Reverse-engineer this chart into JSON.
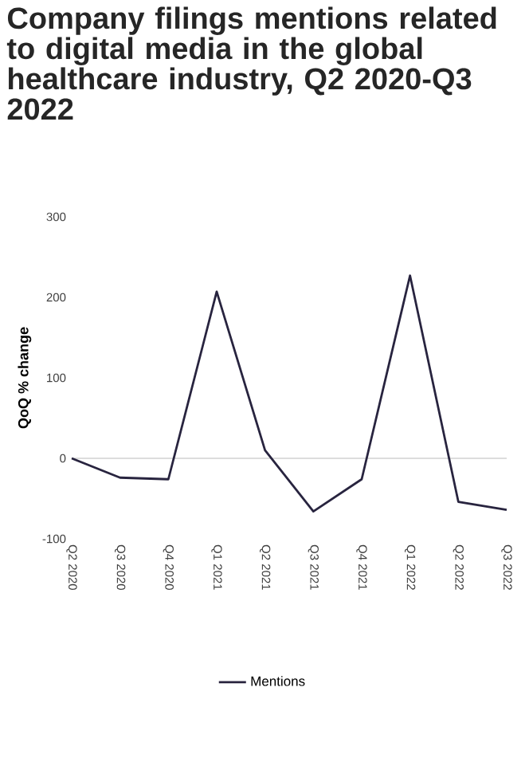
{
  "chart_data": {
    "type": "line",
    "title": "Company filings mentions related to digital media in the global healthcare industry, Q2 2020-Q3 2022",
    "ylabel": "QoQ % change",
    "categories": [
      "Q2 2020",
      "Q3 2020",
      "Q4 2020",
      "Q1 2021",
      "Q2 2021",
      "Q3 2021",
      "Q4 2021",
      "Q1 2022",
      "Q2 2022",
      "Q3 2022"
    ],
    "series": [
      {
        "name": "Mentions",
        "color": "#28243f",
        "values": [
          0,
          -24,
          -26,
          207,
          10,
          -66,
          -26,
          227,
          -54,
          -64
        ]
      }
    ],
    "ylim": [
      -100,
      300
    ],
    "yticks": [
      -100,
      0,
      100,
      200,
      300
    ],
    "ref_lines": [
      {
        "axis": "y",
        "value": 0,
        "color": "#bbbbbb"
      }
    ],
    "legend": "bottom",
    "grid": false,
    "marker": "none",
    "line_style": "solid"
  }
}
